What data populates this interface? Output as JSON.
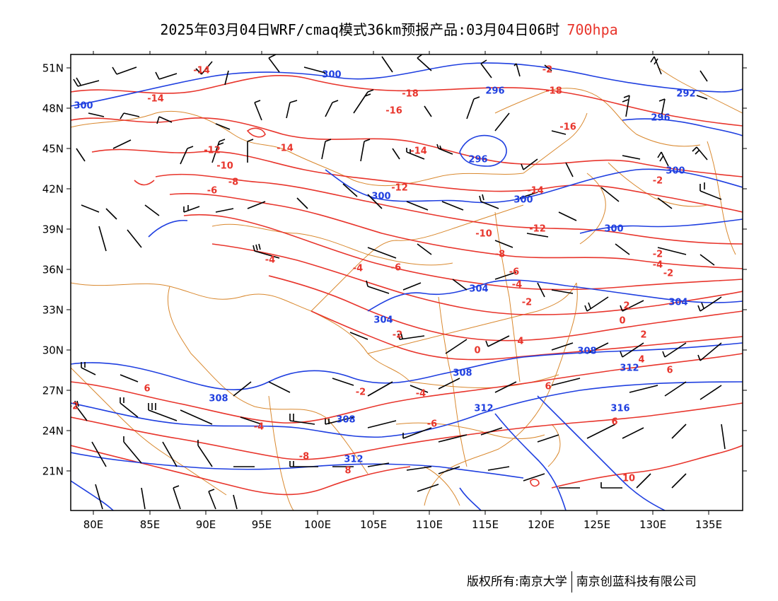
{
  "header": {
    "title_main": "2025年03月04日WRF/cmaq模式36km预报产品:03月04日06时",
    "title_level": "700hpa"
  },
  "footer": {
    "copyright": "版权所有:南京大学",
    "company": "南京创蓝科技有限公司"
  },
  "map": {
    "lon_labels": [
      "80E",
      "85E",
      "90E",
      "95E",
      "100E",
      "105E",
      "110E",
      "115E",
      "120E",
      "125E",
      "130E",
      "135E"
    ],
    "lat_labels": [
      "51N",
      "48N",
      "45N",
      "42N",
      "39N",
      "36N",
      "33N",
      "30N",
      "27N",
      "24N",
      "21N"
    ],
    "colors": {
      "temperature": "#e8352c",
      "geopotential_height": "#1f3fe0",
      "boundary": "#d9882e",
      "wind_barb": "#000000",
      "frame": "#000000"
    },
    "legend_layers": [
      "temperature-contour",
      "height-contour",
      "wind-barbs",
      "province-boundaries"
    ],
    "temperature_labels": [
      "-14",
      "-14",
      "-12",
      "-10",
      "-8",
      "-6",
      "-18",
      "-18",
      "-16",
      "-16",
      "-14",
      "-14",
      "-12",
      "-14",
      "-12",
      "-10",
      "-8",
      "-6",
      "-4",
      "-4",
      "-6",
      "-4",
      "-2",
      "-2",
      "-2",
      "0",
      "2",
      "4",
      "6",
      "-2",
      "-4",
      "-4",
      "-6",
      "-8",
      "6",
      "8",
      "10",
      "4",
      "2",
      "0",
      "-2",
      "-4",
      "6",
      "-2",
      "-2",
      "6",
      "-2"
    ],
    "height_labels": [
      "300",
      "300",
      "296",
      "296",
      "292",
      "300",
      "300",
      "300",
      "296",
      "304",
      "304",
      "304",
      "308",
      "308",
      "308",
      "312",
      "312",
      "308",
      "316",
      "300",
      "312"
    ]
  }
}
